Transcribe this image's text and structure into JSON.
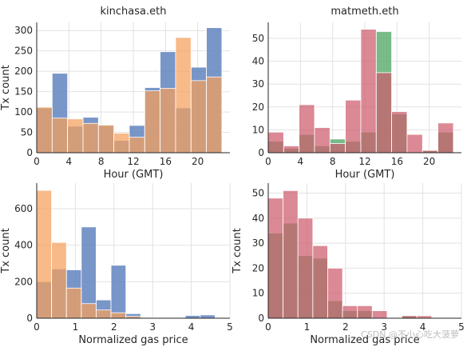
{
  "colors": {
    "orange": "#f5a05a",
    "blue": "#5b7fbd",
    "red": "#cd5c6c",
    "green": "#5aac6e",
    "grid": "#e2e2e2",
    "axis": "#262626"
  },
  "watermark": "CSDN @不小心吃大菠萝",
  "chart_data": [
    {
      "type": "bar",
      "title": "kinchasa.eth",
      "xlabel": "Hour (GMT)",
      "ylabel": "Tx count",
      "xlim": [
        0,
        24
      ],
      "ylim": [
        0,
        320
      ],
      "xticks": [
        0,
        4,
        8,
        12,
        16,
        20
      ],
      "yticks": [
        0,
        50,
        100,
        150,
        200,
        250,
        300
      ],
      "grid": true,
      "bin_edges": [
        0,
        1.917,
        3.833,
        5.75,
        7.667,
        9.583,
        11.5,
        13.417,
        15.333,
        17.25,
        19.167,
        21.083,
        23
      ],
      "series": [
        {
          "color_key": "blue",
          "values": [
            110,
            195,
            65,
            87,
            67,
            30,
            67,
            160,
            248,
            110,
            210,
            307
          ]
        },
        {
          "color_key": "orange",
          "values": [
            112,
            85,
            83,
            72,
            68,
            48,
            38,
            152,
            158,
            283,
            177,
            186
          ]
        }
      ]
    },
    {
      "type": "bar",
      "title": "matmeth.eth",
      "xlabel": "Hour (GMT)",
      "ylabel": "",
      "xlim": [
        0,
        24
      ],
      "ylim": [
        0,
        57
      ],
      "xticks": [
        0,
        4,
        8,
        12,
        16,
        20
      ],
      "yticks": [
        0,
        10,
        20,
        30,
        40,
        50
      ],
      "grid": true,
      "bin_edges": [
        0,
        1.917,
        3.833,
        5.75,
        7.667,
        9.583,
        11.5,
        13.417,
        15.333,
        17.25,
        19.167,
        21.083,
        23
      ],
      "series": [
        {
          "color_key": "green",
          "values": [
            5,
            2,
            8,
            3,
            6,
            5,
            9,
            53,
            17,
            0,
            1,
            9
          ]
        },
        {
          "color_key": "red",
          "values": [
            9,
            3,
            21,
            11,
            4,
            23,
            54,
            35,
            18,
            8,
            1,
            13
          ]
        }
      ]
    },
    {
      "type": "bar",
      "title": "",
      "xlabel": "Normalized gas price",
      "ylabel": "Tx count",
      "xlim": [
        0,
        5
      ],
      "ylim": [
        0,
        740
      ],
      "xticks": [
        0,
        1,
        2,
        3,
        4,
        5
      ],
      "yticks": [
        0,
        200,
        400,
        600
      ],
      "grid": true,
      "bin_edges": [
        0,
        0.385,
        0.769,
        1.154,
        1.538,
        1.923,
        2.308,
        2.692,
        3.077,
        3.462,
        3.846,
        4.231,
        4.615,
        5
      ],
      "series": [
        {
          "color_key": "blue",
          "values": [
            200,
            270,
            265,
            500,
            100,
            290,
            25,
            3,
            2,
            3,
            15,
            18,
            0
          ]
        },
        {
          "color_key": "orange",
          "values": [
            700,
            415,
            165,
            80,
            45,
            30,
            10,
            3,
            0,
            0,
            0,
            0,
            0
          ]
        }
      ]
    },
    {
      "type": "bar",
      "title": "",
      "xlabel": "Normalized gas price",
      "ylabel": "Tx count",
      "xlim": [
        0,
        5
      ],
      "ylim": [
        0,
        54
      ],
      "xticks": [
        0,
        1,
        2,
        3,
        4,
        5
      ],
      "yticks": [
        0,
        10,
        20,
        30,
        40,
        50
      ],
      "grid": true,
      "bin_edges": [
        0,
        0.385,
        0.769,
        1.154,
        1.538,
        1.923,
        2.308,
        2.692,
        3.077,
        3.462,
        3.846,
        4.231,
        4.615,
        5
      ],
      "series": [
        {
          "color_key": "green",
          "values": [
            34,
            38,
            25,
            24,
            7,
            3,
            3,
            0,
            0,
            1,
            0,
            0,
            0
          ]
        },
        {
          "color_key": "red",
          "values": [
            48,
            51,
            40,
            29,
            20,
            5,
            5,
            3,
            0,
            1,
            1,
            0,
            0
          ]
        }
      ]
    }
  ]
}
